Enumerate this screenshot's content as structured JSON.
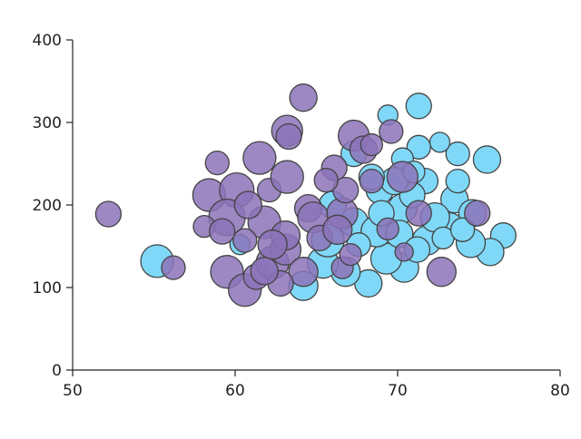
{
  "chart_data": {
    "type": "scatter",
    "subtype": "bubble",
    "title": "",
    "xlabel": "",
    "ylabel": "",
    "xlim": [
      50,
      80
    ],
    "ylim": [
      0,
      400
    ],
    "x_ticks": [
      "50",
      "60",
      "70",
      "80"
    ],
    "y_ticks": [
      "0",
      "100",
      "200",
      "300",
      "400"
    ],
    "grid": false,
    "legend": "none",
    "series": [
      {
        "color": "#7fd8f7",
        "points": [
          [
            55.2,
            132,
            18
          ],
          [
            71.3,
            320,
            14
          ],
          [
            69.4,
            309,
            11
          ],
          [
            75.5,
            255,
            15
          ],
          [
            73.7,
            262,
            13
          ],
          [
            72.6,
            276,
            11
          ],
          [
            71.3,
            270,
            13
          ],
          [
            70.3,
            256,
            12
          ],
          [
            68.9,
            218,
            15
          ],
          [
            70.3,
            196,
            16
          ],
          [
            71.7,
            229,
            14
          ],
          [
            73.5,
            207,
            15
          ],
          [
            74.6,
            190,
            15
          ],
          [
            76.5,
            163,
            14
          ],
          [
            75.7,
            143,
            15
          ],
          [
            74.5,
            154,
            16
          ],
          [
            73.2,
            174,
            15
          ],
          [
            71.8,
            157,
            16
          ],
          [
            70.4,
            124,
            16
          ],
          [
            69.3,
            135,
            17
          ],
          [
            68.2,
            105,
            15
          ],
          [
            66.8,
            119,
            16
          ],
          [
            65.4,
            130,
            17
          ],
          [
            64.2,
            102,
            16
          ],
          [
            65.7,
            157,
            18
          ],
          [
            67.3,
            179,
            16
          ],
          [
            68.7,
            168,
            17
          ],
          [
            70.1,
            165,
            15
          ],
          [
            71.2,
            146,
            14
          ],
          [
            67.6,
            152,
            13
          ],
          [
            70.9,
            212,
            14
          ],
          [
            69.8,
            229,
            15
          ],
          [
            68.4,
            234,
            14
          ],
          [
            72.3,
            185,
            16
          ],
          [
            73.7,
            229,
            13
          ],
          [
            67.3,
            262,
            14
          ],
          [
            60.3,
            152,
            11
          ],
          [
            72.8,
            160,
            12
          ],
          [
            74.0,
            170,
            13
          ],
          [
            66.0,
            200,
            15
          ],
          [
            69.0,
            190,
            14
          ],
          [
            71.0,
            240,
            12
          ]
        ]
      },
      {
        "color": "#8c73b8",
        "points": [
          [
            52.2,
            189,
            14
          ],
          [
            56.2,
            124,
            13
          ],
          [
            64.2,
            330,
            15
          ],
          [
            63.2,
            290,
            17
          ],
          [
            63.3,
            283,
            14
          ],
          [
            67.3,
            284,
            17
          ],
          [
            61.5,
            257,
            18
          ],
          [
            58.4,
            212,
            18
          ],
          [
            60.1,
            218,
            19
          ],
          [
            62.1,
            218,
            13
          ],
          [
            63.2,
            234,
            18
          ],
          [
            64.5,
            196,
            15
          ],
          [
            61.8,
            179,
            18
          ],
          [
            59.5,
            185,
            20
          ],
          [
            58.1,
            174,
            12
          ],
          [
            59.2,
            168,
            14
          ],
          [
            60.6,
            157,
            13
          ],
          [
            59.5,
            119,
            18
          ],
          [
            60.6,
            97,
            18
          ],
          [
            61.3,
            113,
            14
          ],
          [
            62.3,
            130,
            18
          ],
          [
            63.1,
            146,
            17
          ],
          [
            64.2,
            119,
            16
          ],
          [
            64.8,
            185,
            17
          ],
          [
            66.6,
            190,
            17
          ],
          [
            66.1,
            245,
            14
          ],
          [
            66.8,
            218,
            14
          ],
          [
            68.4,
            229,
            13
          ],
          [
            69.6,
            289,
            13
          ],
          [
            67.9,
            267,
            15
          ],
          [
            70.3,
            234,
            17
          ],
          [
            68.4,
            273,
            12
          ],
          [
            71.3,
            190,
            14
          ],
          [
            69.4,
            171,
            12
          ],
          [
            70.4,
            143,
            10
          ],
          [
            72.7,
            119,
            16
          ],
          [
            74.9,
            190,
            14
          ],
          [
            66.6,
            124,
            12
          ],
          [
            63.1,
            163,
            16
          ],
          [
            62.3,
            152,
            16
          ],
          [
            58.9,
            251,
            13
          ],
          [
            60.8,
            200,
            15
          ],
          [
            62.8,
            105,
            14
          ],
          [
            65.2,
            160,
            14
          ],
          [
            66.3,
            170,
            16
          ],
          [
            67.1,
            140,
            12
          ],
          [
            65.6,
            230,
            13
          ],
          [
            61.8,
            120,
            15
          ]
        ]
      }
    ]
  }
}
